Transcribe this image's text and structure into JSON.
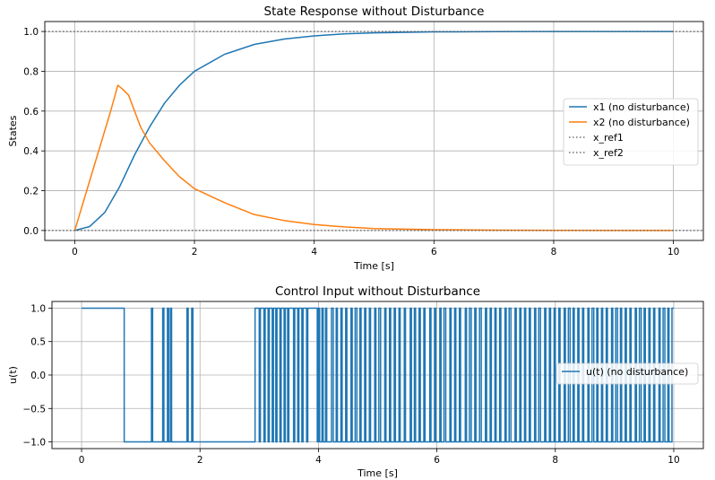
{
  "chart_data": [
    {
      "type": "line",
      "title": "State Response without Disturbance",
      "xlabel": "Time [s]",
      "ylabel": "States",
      "xlim": [
        -0.5,
        10.5
      ],
      "ylim": [
        -0.05,
        1.05
      ],
      "xticks": [
        "0",
        "2",
        "4",
        "6",
        "8",
        "10"
      ],
      "yticks": [
        "0.0",
        "0.2",
        "0.4",
        "0.6",
        "0.8",
        "1.0"
      ],
      "grid": true,
      "legend": "center-right",
      "series": [
        {
          "name": "x1 (no disturbance)",
          "color": "#1f77b4",
          "style": "solid",
          "x": [
            0,
            0.25,
            0.5,
            0.75,
            1.0,
            1.25,
            1.5,
            1.75,
            2.0,
            2.5,
            3.0,
            3.5,
            4.0,
            4.5,
            5.0,
            6.0,
            7.0,
            8.0,
            9.0,
            10.0
          ],
          "y": [
            0,
            0.02,
            0.09,
            0.22,
            0.38,
            0.52,
            0.64,
            0.73,
            0.8,
            0.885,
            0.935,
            0.962,
            0.978,
            0.988,
            0.993,
            0.998,
            0.999,
            1.0,
            1.0,
            1.0
          ]
        },
        {
          "name": "x2 (no disturbance)",
          "color": "#ff7f0e",
          "style": "solid",
          "x": [
            0,
            0.3,
            0.6,
            0.72,
            0.8,
            0.9,
            1.0,
            1.1,
            1.25,
            1.5,
            1.75,
            2.0,
            2.5,
            3.0,
            3.5,
            4.0,
            4.5,
            5.0,
            6.0,
            7.0,
            8.0,
            9.0,
            10.0
          ],
          "y": [
            0,
            0.3,
            0.6,
            0.73,
            0.71,
            0.68,
            0.6,
            0.52,
            0.44,
            0.35,
            0.27,
            0.21,
            0.14,
            0.08,
            0.05,
            0.03,
            0.018,
            0.01,
            0.004,
            0.002,
            0.001,
            0.0,
            0.0
          ]
        },
        {
          "name": "x_ref1",
          "color": "#555555",
          "style": "dotted",
          "x": [
            -0.5,
            10.5
          ],
          "y": [
            1.0,
            1.0
          ]
        },
        {
          "name": "x_ref2",
          "color": "#555555",
          "style": "dotted",
          "x": [
            -0.5,
            10.5
          ],
          "y": [
            0.0,
            0.0
          ]
        }
      ]
    },
    {
      "type": "line",
      "title": "Control Input without Disturbance",
      "xlabel": "Time [s]",
      "ylabel": "u(t)",
      "xlim": [
        -0.5,
        10.5
      ],
      "ylim": [
        -1.1,
        1.1
      ],
      "xticks": [
        "0",
        "2",
        "4",
        "6",
        "8",
        "10"
      ],
      "yticks": [
        "−1.0",
        "−0.5",
        "0.0",
        "0.5",
        "1.0"
      ],
      "grid": true,
      "legend": "center-right",
      "series": [
        {
          "name": "u(t) (no disturbance)",
          "color": "#1f77b4",
          "style": "step",
          "switch_times": [
            0.72,
            1.18,
            1.2,
            1.37,
            1.39,
            1.45,
            1.47,
            1.5,
            1.52,
            1.78,
            1.8,
            1.86,
            1.88,
            2.93,
            3.0,
            3.02,
            3.08,
            3.1,
            3.15,
            3.17,
            3.22,
            3.24,
            3.28,
            3.3,
            3.35,
            3.37,
            3.42,
            3.44,
            3.48,
            3.5,
            3.58,
            3.6,
            3.65,
            3.67,
            3.72,
            3.74,
            3.8,
            3.82,
            3.98,
            4.0,
            4.02,
            4.06,
            4.08,
            4.12,
            4.14,
            4.22,
            4.25,
            4.3,
            4.32,
            4.38,
            4.4,
            4.46,
            4.48,
            4.55,
            4.57,
            4.62,
            4.65,
            4.7,
            4.72,
            4.78,
            4.8,
            4.86,
            4.88,
            4.95,
            4.97,
            5.02,
            5.05,
            5.12,
            5.14,
            5.2,
            5.22,
            5.28,
            5.3,
            5.36,
            5.38,
            5.45,
            5.47,
            5.55,
            5.57,
            5.62,
            5.64,
            5.7,
            5.72,
            5.78,
            5.8,
            5.88,
            5.9,
            5.96,
            5.98,
            6.05,
            6.07,
            6.12,
            6.15,
            6.22,
            6.24,
            6.3,
            6.32,
            6.38,
            6.4,
            6.48,
            6.5,
            6.55,
            6.58,
            6.64,
            6.66,
            6.72,
            6.75,
            6.82,
            6.84,
            6.9,
            6.92,
            6.98,
            7.0,
            7.06,
            7.08,
            7.15,
            7.17,
            7.22,
            7.25,
            7.32,
            7.34,
            7.4,
            7.42,
            7.48,
            7.5,
            7.56,
            7.58,
            7.65,
            7.67,
            7.72,
            7.75,
            7.82,
            7.84,
            7.9,
            7.92,
            7.98,
            8.0,
            8.06,
            8.08,
            8.15,
            8.17,
            8.22,
            8.25,
            8.3,
            8.32,
            8.38,
            8.4,
            8.46,
            8.48,
            8.55,
            8.57,
            8.62,
            8.65,
            8.7,
            8.72,
            8.78,
            8.8,
            8.86,
            8.88,
            8.95,
            8.97,
            9.02,
            9.05,
            9.1,
            9.12,
            9.18,
            9.2,
            9.26,
            9.28,
            9.35,
            9.37,
            9.42,
            9.45,
            9.5,
            9.52,
            9.58,
            9.6,
            9.66,
            9.68,
            9.75,
            9.77,
            9.82,
            9.85,
            9.9,
            9.92,
            9.97
          ],
          "initial_value": 1.0,
          "x_range": [
            0,
            10
          ]
        }
      ]
    }
  ]
}
